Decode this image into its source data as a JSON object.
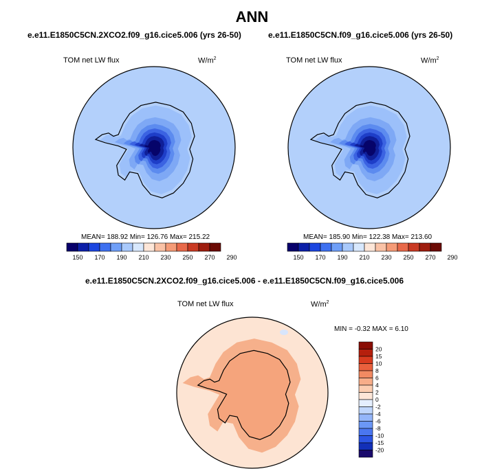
{
  "main_title": "ANN",
  "diff_title": "e.e11.E1850C5CN.2XCO2.f09_g16.cice5.006 - e.e11.E1850C5CN.f09_g16.cice5.006",
  "panels": [
    {
      "case": "e.e11.E1850C5CN.2XCO2.f09_g16.cice5.006 (yrs 26-50)",
      "variable": "TOM net LW flux",
      "units": "W/m",
      "units_sup": "2",
      "stats": "MEAN= 188.92  Min= 126.76  Max= 215.22"
    },
    {
      "case": "e.e11.E1850C5CN.f09_g16.cice5.006 (yrs 26-50)",
      "variable": "TOM net LW flux",
      "units": "W/m",
      "units_sup": "2",
      "stats": "MEAN= 185.90  Min= 122.38  Max= 213.60"
    },
    {
      "variable": "TOM net LW flux",
      "units": "W/m",
      "units_sup": "2",
      "stats": "MIN =  -0.32 MAX =   6.10"
    }
  ],
  "colors": {
    "abs_scale": [
      "#08006b",
      "#0c1fa8",
      "#1c46e0",
      "#3e70f0",
      "#6f9ff8",
      "#a9c9fb",
      "#d8e8fd",
      "#fde6d8",
      "#fac2a6",
      "#f59b77",
      "#e8694a",
      "#c93a23",
      "#9e1d0e",
      "#6b0a04"
    ],
    "diff_scale": [
      "#1a0a6c",
      "#1330b8",
      "#2c55e4",
      "#4a76f0",
      "#6b97f6",
      "#94b6fa",
      "#bfd6fc",
      "#e4eefe",
      "#fde6d8",
      "#fbcdb1",
      "#f7ad89",
      "#f28a62",
      "#e9603d",
      "#d83b1f",
      "#b51f0d",
      "#8a0d04"
    ]
  },
  "chart_data": [
    {
      "type": "heatmap",
      "projection": "south-polar-stereographic",
      "title": "e.e11.E1850C5CN.2XCO2.f09_g16.cice5.006 (yrs 26-50)",
      "variable": "TOM net LW flux",
      "units": "W/m2",
      "mean": 188.92,
      "min": 126.76,
      "max": 215.22,
      "colorbar_levels": [
        150,
        170,
        190,
        210,
        230,
        250,
        270,
        290
      ]
    },
    {
      "type": "heatmap",
      "projection": "south-polar-stereographic",
      "title": "e.e11.E1850C5CN.f09_g16.cice5.006 (yrs 26-50)",
      "variable": "TOM net LW flux",
      "units": "W/m2",
      "mean": 185.9,
      "min": 122.38,
      "max": 213.6,
      "colorbar_levels": [
        150,
        170,
        190,
        210,
        230,
        250,
        270,
        290
      ]
    },
    {
      "type": "heatmap",
      "projection": "south-polar-stereographic",
      "title": "e.e11.E1850C5CN.2XCO2.f09_g16.cice5.006 - e.e11.E1850C5CN.f09_g16.cice5.006",
      "variable": "TOM net LW flux",
      "units": "W/m2",
      "min": -0.32,
      "max": 6.1,
      "colorbar_levels": [
        20,
        15,
        10,
        8,
        6,
        4,
        2,
        0,
        -2,
        -4,
        -6,
        -8,
        -10,
        -15,
        -20
      ]
    }
  ]
}
